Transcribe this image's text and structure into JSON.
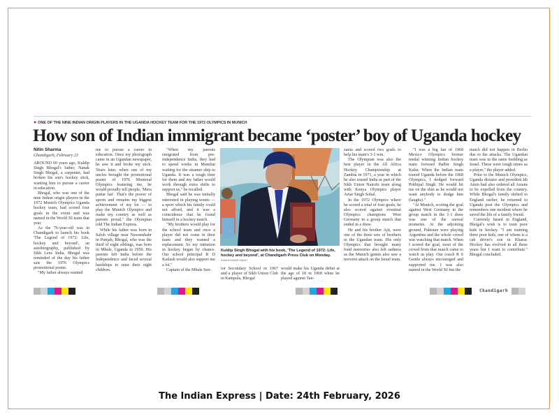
{
  "article": {
    "kicker": "ONE OF THE NINE INDIAN ORIGIN PLAYERS IN THE UGANDA HOCKEY TEAM FOR THE 1972 OLYMPICS IN MUNICH",
    "headline": "How son of Indian immigrant became ‘poster’ boy of Uganda hockey",
    "byline": "Nitin Sharma",
    "dateline": "Chandigarh, February 23",
    "columns": [
      [
        "AROUND 60 years ago, Kuldip Singh Bhogal's father, Nanak Singh Bhogal, a carpenter, had broken his son's hockey stick, wanting him to pursue a career in education.",
        "Bhogal, who was one of the nine Indian origin players in the 1972 Munich Olympics Uganda hockey team, had scored four goals in the event and was named in the World XI team that year.",
        "As the 76-year-old was in Chandigarh to launch his book 'The Legend of 1972: Life, hockey and beyond', an autobiography, published by Sikh Lens India, Bhogal was reminded of the day his father saw the 1976 Olympics promotional poster.",
        "\"My father always wanted"
      ],
      [
        "me to pursue a career in education. Once my photograph came in an Ugandan newspaper, he saw it and broke my stick. Years later, when one of my uncles brought the promotional poster of 1976 Montreal Olympics featuring me, he would proudly tell people, 'Mera puttar hai'. That's the power of sports and remains my biggest achievement of my lot — to play the Munich Olympics and make my country as well as parents proud,\" the Olympian told The Indian Express.",
        "While his father was born in Saloh village near Nawanshahr in Punjab, Bhogal, who was the third of eight siblings, was born in Mbale, Uganda in 1950. His parents left India before the Independence and faced several hardships to raise their eight children."
      ],
      [
        "\"When my parents emigrated from pre-independence India, they had to spend weeks in Mumbai waiting for the steamer ship to Uganda. It was a tough time for them and my father would work through extra shifts to support us,\" he recalled.",
        "Bhogal said he was initially interested in playing tennis — a sport which his family could not afford, and it was a coincidence that he found himself in a hockey match.",
        "\"My brothers would play for the school team and once a player did not come in their team and they wanted a replacement. So my initiation in hockey began by chance. Our school principal R D Kailash would also support me a lot.\"",
        "Captain of the Mbale Sen-"
      ],
      [
        "ior Secondary School in 1967 and a player of Sikh Union Club in Kampala, Bhogal"
      ],
      [
        "would make his Uganda debut at the age of 18 in 1968 when he played against Tan-"
      ],
      [
        "zania and scored two goals to help his team's 3-1 win.",
        "The Olympian was also the best player in the All Africa Hockey Championship at Zambia in 1971, a year in which he also toured India as part of the Sikh Union Nairobi team along with Kenya Olympics player Avtar Singh Sohal.",
        "In the 1972 Olympics where he scored a total of four goals, he also scored against eventual Olympics champions West Germany in a group match that ended in a draw.",
        "He and his brother Ajit, were one of the three sets of brothers in the Ugandan team. His only Olympics that brought many fond memories also left sadness as the Munich games also saw a terrorist attack on the Israel team."
      ],
      [
        "\"I was a big fan of 1968 Mexico Olympics bronze medal winning Indian hockey team forward Balbir Singh Kular. When the Indian team toured Uganda before the 1968 Olympics, I dodged forward Prithipal Singh. He would hit me on the shin as he would not want anybody to dodge him (laughs).\"",
        "\"At Munich, scoring the goal against West Germany in the group match in the 1-1 draw was one of the surreal moments. At the adjoining ground, Pakistan were playing Argentina and the whole crowd was watching that match. When I scored the goal, most of the crowd from that match came to watch us play. Our coach R S Gentle always encouraged and supported me. I was also named in the World XI but the"
      ],
      [
        "match did not happen in Berlin due to the attacks. The Ugandan team was in the same building as Israel. These were tough times as a player,\" the player added.",
        "Prior to the Munich Olympics, Uganda dictator and president Idi Amin had also ordered all Asians to be expelled from the country. While Bhogal's family shifted to England earlier, he returned to Uganda post the Olympics and remembers one incident where he saved the life of a family friend.",
        "Currently based in England, Bhogal's wish is to train poor kids in hockey. \"I am training three poor kids, one of whom is a cab driver's son in Kharar. Hockey has evolved in all these years but I want to contribute.\" Bhogal concluded."
      ]
    ],
    "photo_caption": "Kuldip Singh Bhogal with his book, 'The Legend of 1972: Life, hockey and beyond', at Chandigarh Press Club on Monday.",
    "photo_credit": "KAMLESHWAR SINGH",
    "edition": "Chandigarh"
  },
  "footer": "The Indian Express | Date: 24th February, 2026",
  "colors": {
    "frame": "#f0904a",
    "kicker_bullet": "#d8232a",
    "registration": [
      "#b9b9b9",
      "#d4d4d4",
      "#1ea7e1",
      "#e0178c",
      "#ffe600",
      "#222222"
    ]
  }
}
